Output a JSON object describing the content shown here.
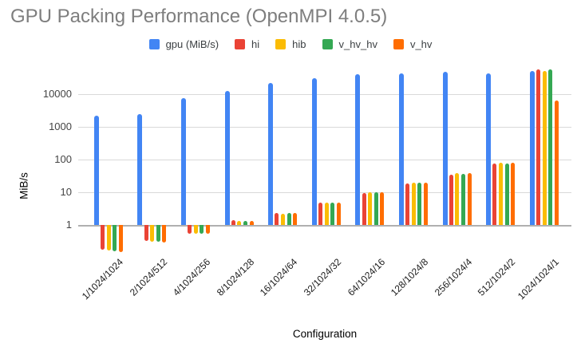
{
  "chart_data": {
    "type": "bar",
    "title": "GPU Packing Performance (OpenMPI 4.0.5)",
    "xlabel": "Configuration",
    "ylabel": "MiB/s",
    "y_scale": "log",
    "y_ticks": [
      1,
      10,
      100,
      1000,
      10000
    ],
    "ylim": [
      0.13,
      60000
    ],
    "baseline": 1,
    "grid": true,
    "legend_position": "top",
    "categories": [
      "1/1024/1024",
      "2/1024/512",
      "4/1024/256",
      "8/1024/128",
      "16/1024/64",
      "32/1024/32",
      "64/1024/16",
      "128/1024/8",
      "256/1024/4",
      "512/1024/2",
      "1024/1024/1"
    ],
    "series": [
      {
        "name": "gpu (MiB/s)",
        "color": "#4285F4",
        "values": [
          2100,
          2400,
          7500,
          12000,
          22000,
          30000,
          39000,
          41000,
          47000,
          43000,
          51000
        ]
      },
      {
        "name": "hi",
        "color": "#EA4335",
        "values": [
          0.18,
          0.32,
          0.55,
          1.4,
          2.3,
          4.8,
          9.5,
          18,
          35,
          74,
          55000
        ]
      },
      {
        "name": "hib",
        "color": "#FBBC04",
        "values": [
          0.17,
          0.3,
          0.55,
          1.3,
          2.2,
          4.7,
          10,
          19,
          38,
          78,
          51000
        ]
      },
      {
        "name": "v_hv_hv",
        "color": "#34A853",
        "values": [
          0.16,
          0.3,
          0.55,
          1.3,
          2.3,
          4.8,
          10,
          19,
          37,
          73,
          55000
        ]
      },
      {
        "name": "v_hv",
        "color": "#FF6D01",
        "values": [
          0.15,
          0.29,
          0.55,
          1.3,
          2.3,
          4.8,
          10,
          19,
          38,
          78,
          6200
        ]
      }
    ]
  }
}
